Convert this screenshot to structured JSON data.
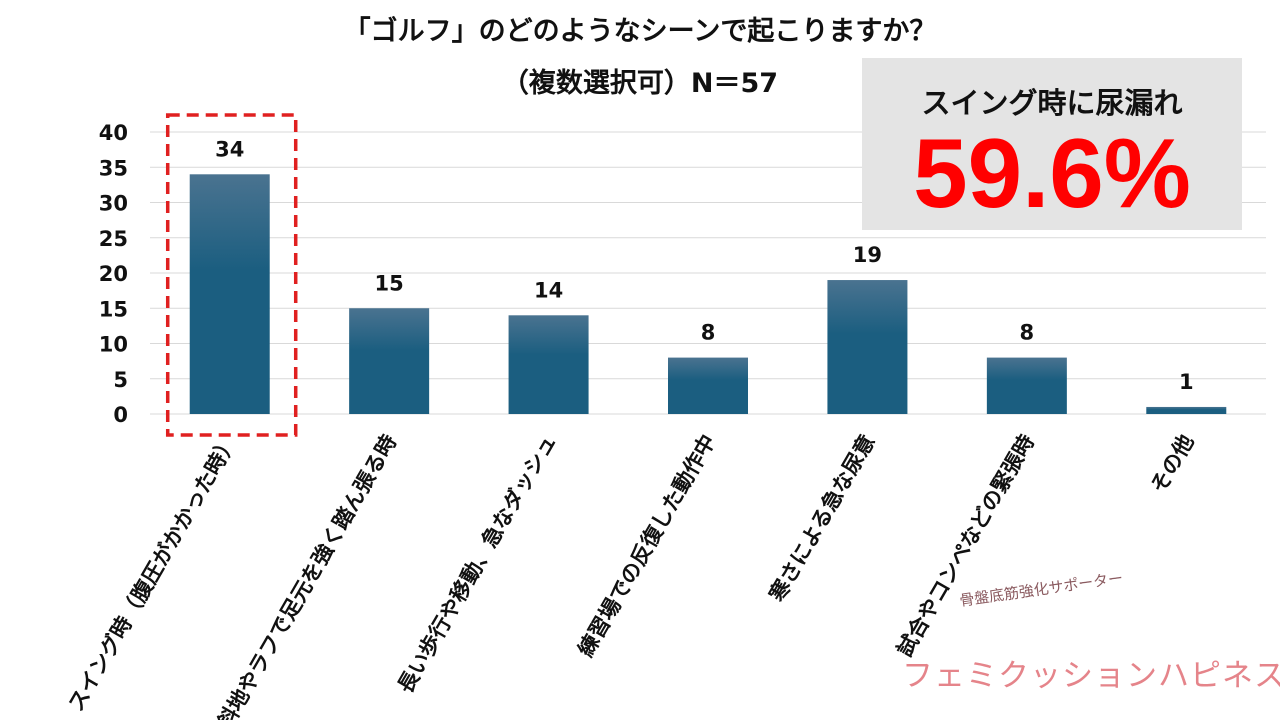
{
  "chart_data": {
    "type": "bar",
    "title": "「ゴルフ」のどのようなシーンで起こりますか？",
    "subtitle": "（複数選択可）N＝57",
    "categories": [
      "スイング時（腹圧がかかった時）",
      "傾斜地やラフで足元を強く踏ん張る時",
      "長い歩行や移動、急なダッシュ",
      "練習場での反復した動作中",
      "寒さによる急な尿意",
      "試合やコンペなどの緊張時",
      "その他"
    ],
    "values": [
      34,
      15,
      14,
      8,
      19,
      8,
      1
    ],
    "ylim": [
      0,
      40
    ],
    "yticks": [
      0,
      5,
      10,
      15,
      20,
      25,
      30,
      35,
      40
    ],
    "grid": true,
    "bar_color": "#1b5e80",
    "highlight_index": 0,
    "highlight_color": "#e02020"
  },
  "callout": {
    "label": "スイング時に尿漏れ",
    "value": "59.6%",
    "value_color": "#ff0000"
  },
  "brand": {
    "tagline": "骨盤底筋強化サポーター",
    "name": "フェミクッションハピネス"
  }
}
